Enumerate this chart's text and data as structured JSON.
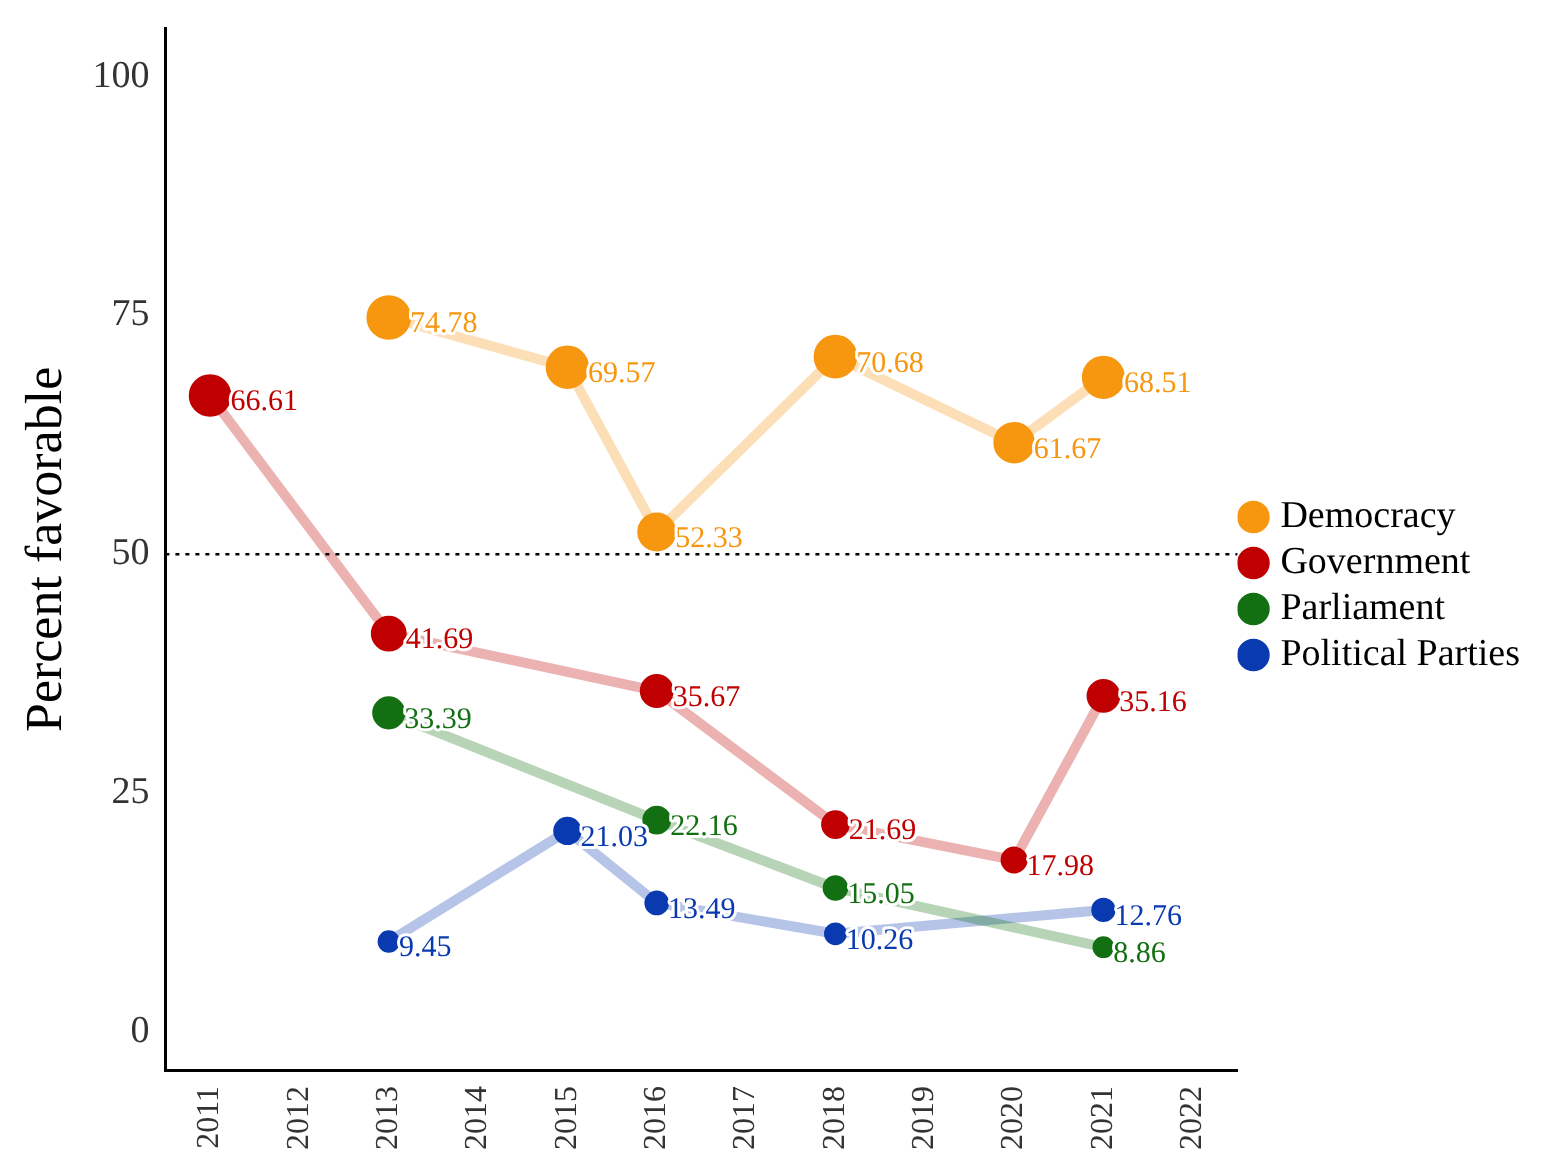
{
  "chart_data": {
    "type": "line",
    "ylabel": "Percent favorable",
    "categories": [
      "2011",
      "2012",
      "2013",
      "2014",
      "2015",
      "2016",
      "2017",
      "2018",
      "2019",
      "2020",
      "2021",
      "2022"
    ],
    "series": [
      {
        "name": "Democracy",
        "color": "#f7960f",
        "values": [
          null,
          null,
          74.78,
          null,
          69.57,
          52.33,
          null,
          70.68,
          null,
          61.67,
          68.51,
          null
        ]
      },
      {
        "name": "Government",
        "color": "#c00000",
        "values": [
          66.61,
          null,
          41.69,
          null,
          null,
          35.67,
          null,
          21.69,
          null,
          17.98,
          35.16,
          null
        ]
      },
      {
        "name": "Parliament",
        "color": "#127012",
        "values": [
          null,
          null,
          33.39,
          null,
          null,
          22.16,
          null,
          15.05,
          null,
          null,
          8.86,
          null
        ]
      },
      {
        "name": "Political Parties",
        "color": "#0a3ab0",
        "values": [
          null,
          null,
          9.45,
          null,
          21.03,
          13.49,
          null,
          10.26,
          null,
          null,
          12.76,
          null
        ]
      }
    ],
    "ylim": [
      -4,
      105
    ],
    "yticks": [
      0,
      25,
      50,
      75,
      100
    ],
    "grid": false,
    "legend": "right",
    "marker": "circle",
    "data_labels": true,
    "ref_lines": [
      {
        "axis": "y",
        "value": 50,
        "color": "#000000",
        "line_style": "dotted"
      }
    ]
  }
}
